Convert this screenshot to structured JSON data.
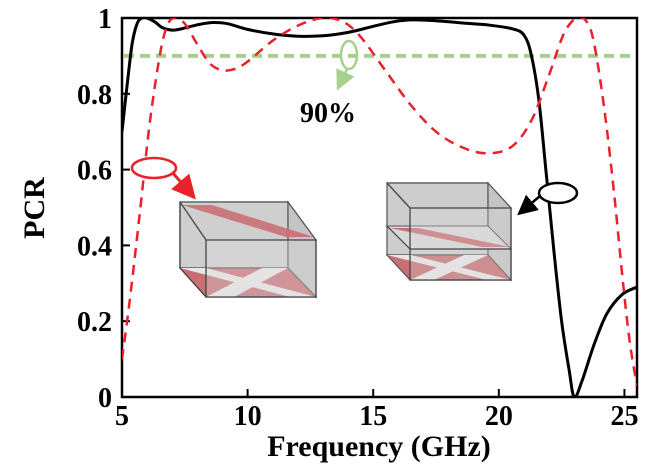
{
  "chart_data": {
    "type": "line",
    "xlabel": "Frequency (GHz)",
    "ylabel": "PCR",
    "xlim": [
      5,
      25.5
    ],
    "ylim": [
      0,
      1
    ],
    "xticks": [
      "5",
      "10",
      "15",
      "20",
      "25"
    ],
    "yticks": [
      "0",
      "0.2",
      "0.4",
      "0.6",
      "0.8",
      "1"
    ],
    "grid": false,
    "legend": "none",
    "reference_line": {
      "y": 0.9,
      "color": "#a8d08d",
      "style": "dashed"
    },
    "annotation": {
      "text": "90%"
    },
    "series": [
      {
        "color": "#000000",
        "style": "solid",
        "points": [
          [
            5,
            0.7
          ],
          [
            5.2,
            0.82
          ],
          [
            5.4,
            0.93
          ],
          [
            5.6,
            0.985
          ],
          [
            5.8,
            1.0
          ],
          [
            6.0,
            1.0
          ],
          [
            6.3,
            0.99
          ],
          [
            6.6,
            0.975
          ],
          [
            7.0,
            0.968
          ],
          [
            7.4,
            0.972
          ],
          [
            8.0,
            0.982
          ],
          [
            8.6,
            0.988
          ],
          [
            9.2,
            0.985
          ],
          [
            10.0,
            0.97
          ],
          [
            11.0,
            0.958
          ],
          [
            12.0,
            0.952
          ],
          [
            13.0,
            0.953
          ],
          [
            14.0,
            0.962
          ],
          [
            15.0,
            0.978
          ],
          [
            15.8,
            0.99
          ],
          [
            16.5,
            0.995
          ],
          [
            17.5,
            0.993
          ],
          [
            18.5,
            0.987
          ],
          [
            19.5,
            0.982
          ],
          [
            20.5,
            0.972
          ],
          [
            21.0,
            0.955
          ],
          [
            21.3,
            0.9
          ],
          [
            21.6,
            0.78
          ],
          [
            21.9,
            0.58
          ],
          [
            22.2,
            0.38
          ],
          [
            22.5,
            0.2
          ],
          [
            22.8,
            0.07
          ],
          [
            23.0,
            0.0
          ],
          [
            23.3,
            0.04
          ],
          [
            23.8,
            0.14
          ],
          [
            24.3,
            0.22
          ],
          [
            24.9,
            0.27
          ],
          [
            25.5,
            0.29
          ]
        ]
      },
      {
        "color": "#e8212b",
        "style": "dashed",
        "points": [
          [
            5,
            0.1
          ],
          [
            5.3,
            0.25
          ],
          [
            5.7,
            0.48
          ],
          [
            6.1,
            0.72
          ],
          [
            6.5,
            0.9
          ],
          [
            6.8,
            0.98
          ],
          [
            7.1,
            1.0
          ],
          [
            7.5,
            0.985
          ],
          [
            8.0,
            0.93
          ],
          [
            8.5,
            0.88
          ],
          [
            9.0,
            0.862
          ],
          [
            9.5,
            0.866
          ],
          [
            10.0,
            0.885
          ],
          [
            11.0,
            0.94
          ],
          [
            12.0,
            0.98
          ],
          [
            13.0,
            1.0
          ],
          [
            13.8,
            0.99
          ],
          [
            14.5,
            0.95
          ],
          [
            15.5,
            0.86
          ],
          [
            16.5,
            0.77
          ],
          [
            17.5,
            0.7
          ],
          [
            18.5,
            0.66
          ],
          [
            19.5,
            0.643
          ],
          [
            20.5,
            0.66
          ],
          [
            21.3,
            0.73
          ],
          [
            22.0,
            0.85
          ],
          [
            22.6,
            0.96
          ],
          [
            23.1,
            1.0
          ],
          [
            23.5,
            0.99
          ],
          [
            23.8,
            0.93
          ],
          [
            24.2,
            0.76
          ],
          [
            24.6,
            0.53
          ],
          [
            24.9,
            0.33
          ],
          [
            25.2,
            0.15
          ],
          [
            25.5,
            0.03
          ]
        ]
      }
    ]
  }
}
